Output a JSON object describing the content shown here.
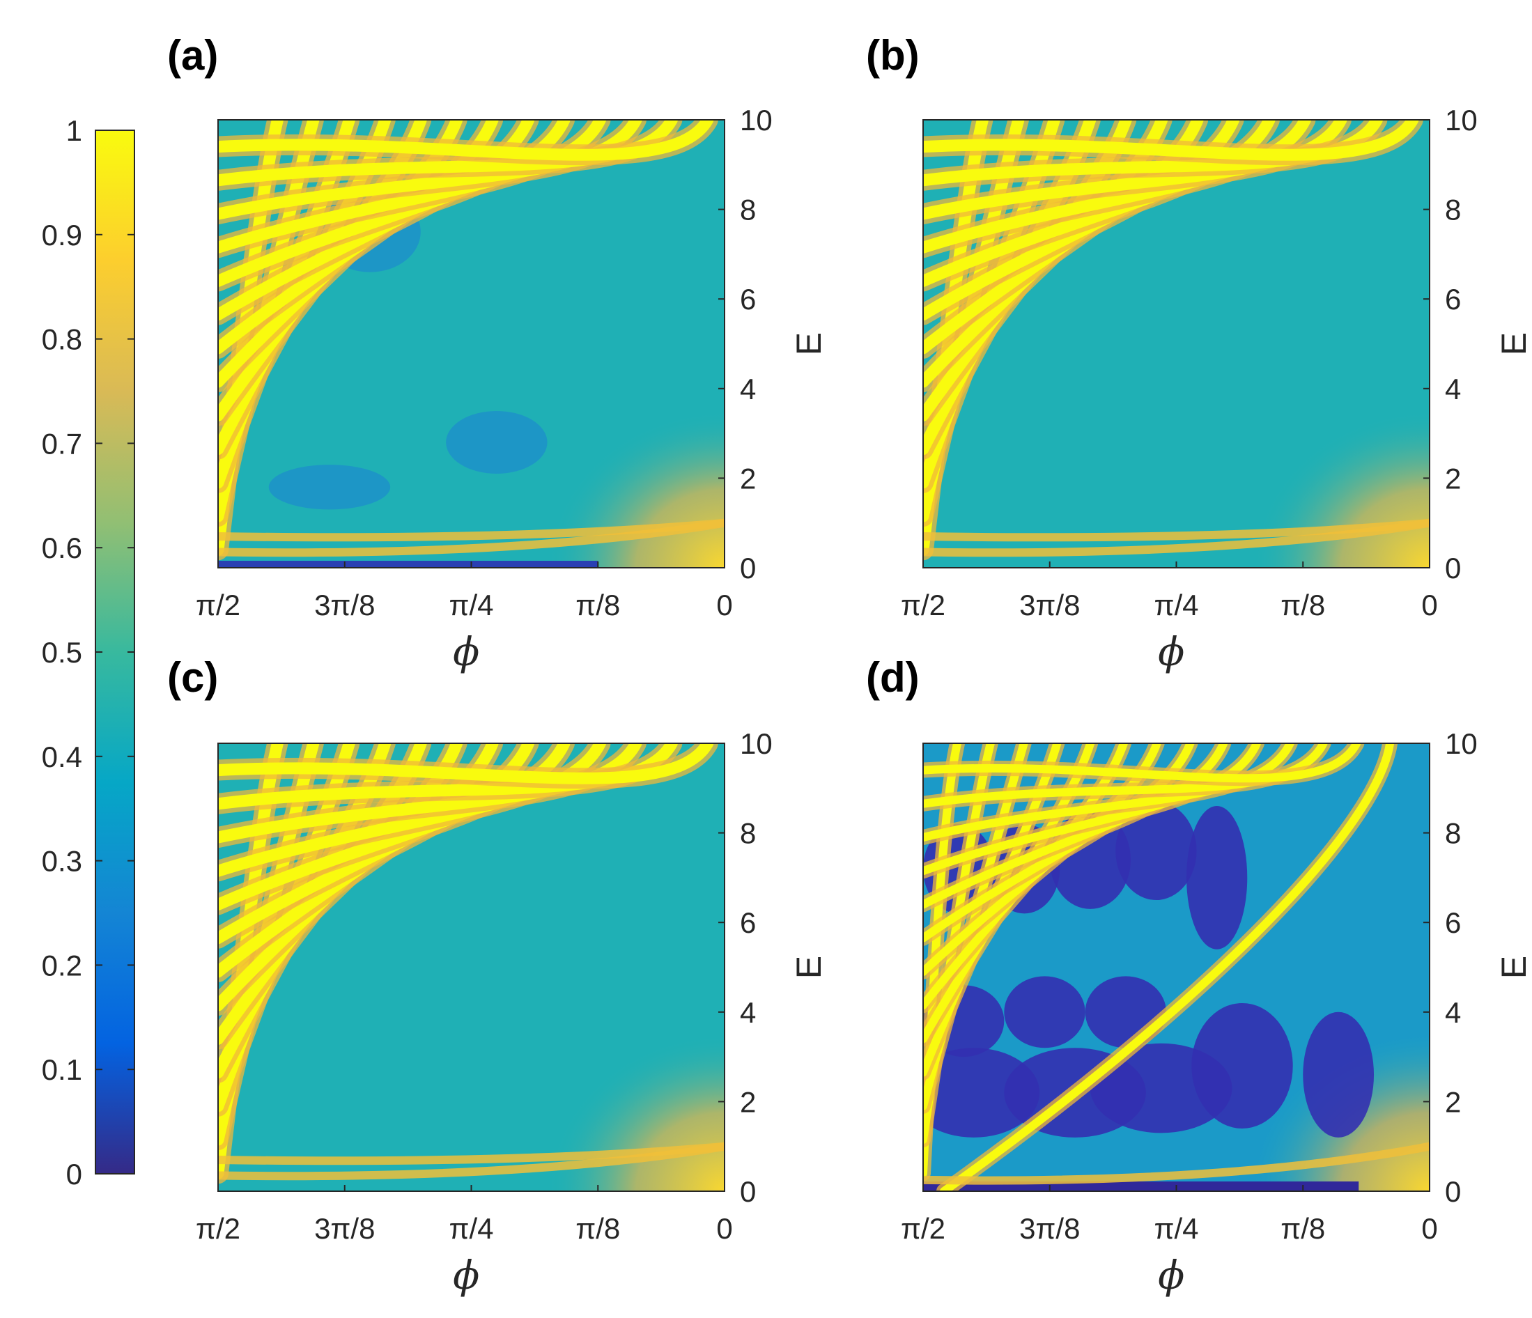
{
  "figure": {
    "colorbar": {
      "min": 0,
      "max": 1,
      "ticks": [
        "0",
        "0.1",
        "0.2",
        "0.3",
        "0.4",
        "0.5",
        "0.6",
        "0.7",
        "0.8",
        "0.9",
        "1"
      ],
      "colormap": "parula",
      "stops": [
        "#352a87",
        "#0363e1",
        "#1485d4",
        "#06a7c6",
        "#38b99e",
        "#92bf73",
        "#d9ba56",
        "#fcce2e",
        "#f9fb0e"
      ]
    }
  },
  "chart_data": [
    {
      "type": "heatmap",
      "panel": "(a)",
      "xlabel": "ϕ",
      "ylabel": "E",
      "xticks": [
        "π/2",
        "3π/8",
        "π/4",
        "π/8",
        "0"
      ],
      "yticks": [
        "0",
        "2",
        "4",
        "6",
        "8",
        "10"
      ],
      "xlim": [
        1.5708,
        0
      ],
      "ylim": [
        0,
        10
      ],
      "x_reversed": true,
      "y_axis_side": "right",
      "colorscale": [
        0,
        1
      ],
      "description": "diagonal yellow bands (value ~1) on teal background (~0.45), with darker blue patches near low E"
    },
    {
      "type": "heatmap",
      "panel": "(b)",
      "xlabel": "ϕ",
      "ylabel": "E",
      "xticks": [
        "π/2",
        "3π/8",
        "π/4",
        "π/8",
        "0"
      ],
      "yticks": [
        "0",
        "2",
        "4",
        "6",
        "8",
        "10"
      ],
      "xlim": [
        1.5708,
        0
      ],
      "ylim": [
        0,
        10
      ],
      "x_reversed": true,
      "y_axis_side": "right",
      "colorscale": [
        0,
        1
      ]
    },
    {
      "type": "heatmap",
      "panel": "(c)",
      "xlabel": "ϕ",
      "ylabel": "E",
      "xticks": [
        "π/2",
        "3π/8",
        "π/4",
        "π/8",
        "0"
      ],
      "yticks": [
        "0",
        "2",
        "4",
        "6",
        "8",
        "10"
      ],
      "xlim": [
        1.5708,
        0
      ],
      "ylim": [
        0,
        10
      ],
      "x_reversed": true,
      "y_axis_side": "right",
      "colorscale": [
        0,
        1
      ]
    },
    {
      "type": "heatmap",
      "panel": "(d)",
      "xlabel": "ϕ",
      "ylabel": "E",
      "xticks": [
        "π/2",
        "3π/8",
        "π/4",
        "π/8",
        "0"
      ],
      "yticks": [
        "0",
        "2",
        "4",
        "6",
        "8",
        "10"
      ],
      "xlim": [
        1.5708,
        0
      ],
      "ylim": [
        0,
        10
      ],
      "x_reversed": true,
      "y_axis_side": "right",
      "colorscale": [
        0,
        1
      ]
    }
  ]
}
